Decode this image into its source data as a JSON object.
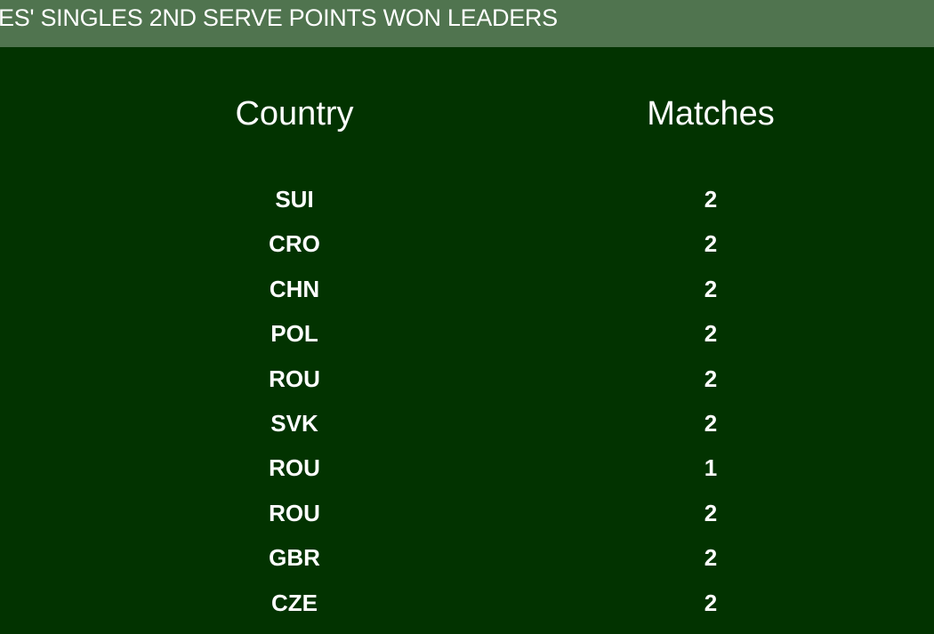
{
  "banner": {
    "title": "ES' SINGLES 2ND SERVE POINTS WON LEADERS"
  },
  "table": {
    "headers": {
      "country": "Country",
      "matches": "Matches"
    },
    "rows": [
      {
        "country": "SUI",
        "matches": "2"
      },
      {
        "country": "CRO",
        "matches": "2"
      },
      {
        "country": "CHN",
        "matches": "2"
      },
      {
        "country": "POL",
        "matches": "2"
      },
      {
        "country": "ROU",
        "matches": "2"
      },
      {
        "country": "SVK",
        "matches": "2"
      },
      {
        "country": "ROU",
        "matches": "1"
      },
      {
        "country": "ROU",
        "matches": "2"
      },
      {
        "country": "GBR",
        "matches": "2"
      },
      {
        "country": "CZE",
        "matches": "2"
      }
    ]
  },
  "colors": {
    "banner": "#50744f",
    "background": "#023300",
    "text": "#ffffff"
  }
}
